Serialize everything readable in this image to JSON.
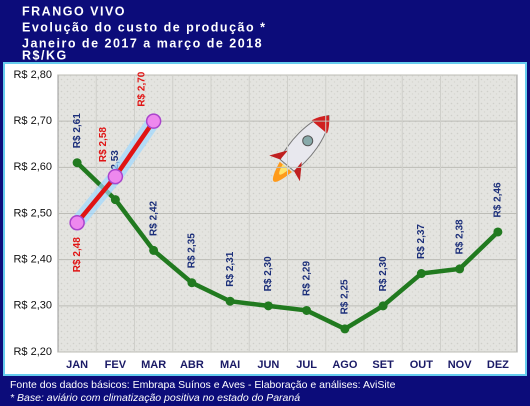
{
  "chart_data": {
    "type": "line",
    "title": "FRANGO VIVO",
    "subtitle": [
      "Evolução do custo de produção *",
      "Janeiro de 2017 a março de 2018"
    ],
    "y_label": "R$/KG",
    "footer": [
      "Fonte dos dados básicos: Embrapa Suínos e Aves - Elaboração e análises: AviSite",
      "* Base: aviário com climatização positiva no estado do Paraná"
    ],
    "categories": [
      "JAN",
      "FEV",
      "MAR",
      "ABR",
      "MAI",
      "JUN",
      "JUL",
      "AGO",
      "SET",
      "OUT",
      "NOV",
      "DEZ"
    ],
    "series": [
      {
        "color": "#217a1f",
        "label_color": "#1c2f7a",
        "values": [
          2.61,
          2.53,
          2.42,
          2.35,
          2.31,
          2.3,
          2.29,
          2.25,
          2.3,
          2.37,
          2.38,
          2.46
        ],
        "value_labels": [
          "R$ 2,61",
          "R$ 2,53",
          "R$ 2,42",
          "R$ 2,35",
          "R$ 2,31",
          "R$ 2,30",
          "R$ 2,29",
          "R$ 2,25",
          "R$ 2,30",
          "R$ 2,37",
          "R$ 2,38",
          "R$ 2,46"
        ]
      },
      {
        "color": "#e01414",
        "label_color": "#e01414",
        "values": [
          2.48,
          2.58,
          2.7,
          null,
          null,
          null,
          null,
          null,
          null,
          null,
          null,
          null
        ],
        "value_labels": [
          "R$ 2,48",
          "R$ 2,58",
          "R$ 2,70",
          null,
          null,
          null,
          null,
          null,
          null,
          null,
          null,
          null
        ]
      }
    ],
    "ylim": [
      2.2,
      2.8
    ],
    "yticks": [
      {
        "value": 2.2,
        "label": "R$ 2,20"
      },
      {
        "value": 2.3,
        "label": "R$ 2,30"
      },
      {
        "value": 2.4,
        "label": "R$ 2,40"
      },
      {
        "value": 2.5,
        "label": "R$ 2,50"
      },
      {
        "value": 2.6,
        "label": "R$ 2,60"
      },
      {
        "value": 2.7,
        "label": "R$ 2,70"
      },
      {
        "value": 2.8,
        "label": "R$ 2,80"
      }
    ],
    "grid": true
  }
}
